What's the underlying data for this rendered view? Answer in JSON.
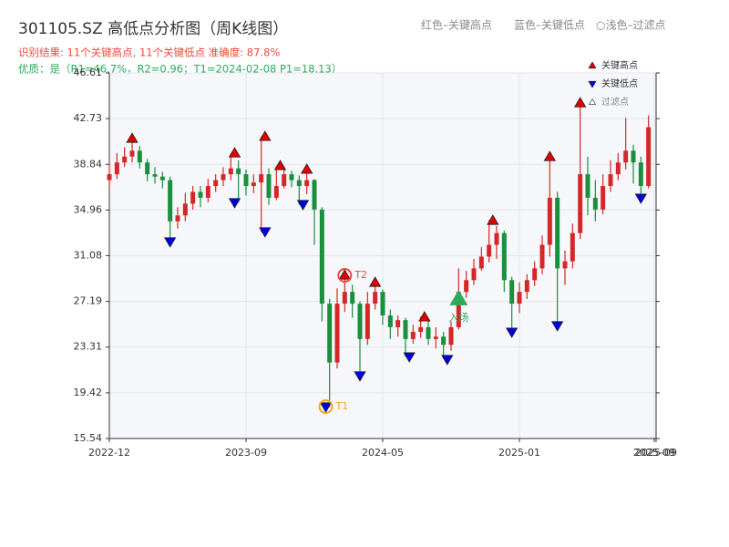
{
  "chart_data": {
    "type": "candlestick",
    "title": "301105.SZ 高低点分析图（周K线图）",
    "subtitle": "识别结果: 11个关键高点, 11个关键低点   准确度: 87.8%",
    "quality_line": "优质：是（R1=46.7%，R2=0.96；T1=2024-02-08 P1=18.13）",
    "header_legend": "红色–关键高点　　蓝色–关键低点　○浅色–过滤点",
    "up_color": "#d62728",
    "down_color": "#1a8f3c",
    "grid": true,
    "xlim": [
      0,
      144
    ],
    "xticks": [
      {
        "value": 0,
        "label": "2022-12"
      },
      {
        "value": 36,
        "label": "2023-09"
      },
      {
        "value": 72,
        "label": "2024-05"
      },
      {
        "value": 108,
        "label": "2025-01"
      },
      {
        "value": 143.5,
        "label": "2025-09"
      },
      {
        "value": 144,
        "label": "2025-09"
      }
    ],
    "ylim": [
      15.54,
      46.61
    ],
    "yticks": [
      15.54,
      19.42,
      23.31,
      27.19,
      31.08,
      34.96,
      38.84,
      42.73,
      46.61
    ],
    "x": [
      0,
      2,
      4,
      6,
      8,
      10,
      12,
      14,
      16,
      18,
      20,
      22,
      24,
      26,
      28,
      30,
      32,
      34,
      36,
      38,
      40,
      42,
      44,
      46,
      48,
      50,
      52,
      54,
      56,
      58,
      60,
      62,
      64,
      66,
      68,
      70,
      72,
      74,
      76,
      78,
      80,
      82,
      84,
      86,
      88,
      90,
      92,
      94,
      96,
      98,
      100,
      102,
      104,
      106,
      108,
      110,
      112,
      114,
      116,
      118,
      120,
      122,
      124,
      126,
      128,
      130,
      132,
      134,
      136,
      138,
      140,
      142
    ],
    "open": [
      37.5,
      38,
      39,
      39.5,
      40,
      39,
      38,
      37.8,
      37.5,
      34,
      34.5,
      35.5,
      36.5,
      36,
      37,
      37.5,
      38,
      38.5,
      38,
      37,
      37.3,
      38,
      36,
      37,
      38,
      37.5,
      37,
      37.5,
      35,
      27,
      22,
      27,
      28,
      27,
      24,
      27,
      28,
      26,
      25,
      25.6,
      24,
      24.6,
      25,
      24,
      24.2,
      23.5,
      25,
      28,
      29,
      30,
      31,
      32,
      33,
      29,
      27,
      28,
      29,
      30,
      32,
      36,
      30,
      30.6,
      33,
      38,
      36,
      35,
      37,
      38,
      39,
      40,
      39,
      37
    ],
    "high": [
      38.9,
      39.8,
      40.3,
      41.0,
      40.4,
      39.3,
      38.6,
      38.2,
      37.8,
      35.2,
      36.4,
      37.0,
      37.0,
      37.6,
      38.0,
      38.6,
      39.8,
      39.2,
      38.4,
      38,
      41.2,
      38.5,
      38.7,
      38.6,
      38.3,
      37.9,
      38.4,
      37.6,
      35.2,
      27.4,
      28.3,
      29.4,
      28.6,
      27.2,
      28,
      28.8,
      28.2,
      26.5,
      26.0,
      25.8,
      25.2,
      25.9,
      25.5,
      25,
      24.6,
      25.5,
      30,
      29.8,
      30.8,
      31.8,
      34.1,
      33.6,
      33.2,
      29.3,
      28.8,
      29.5,
      30.6,
      32.8,
      39.5,
      36.5,
      31.5,
      33.8,
      44.1,
      39.5,
      37.5,
      38,
      39.2,
      39.8,
      42.8,
      40.5,
      39.5,
      43
    ],
    "low": [
      36.8,
      37.6,
      38.6,
      39.0,
      38.5,
      37.4,
      37.2,
      36.8,
      32.3,
      33.4,
      34.0,
      35.0,
      35.2,
      35.6,
      36.5,
      37.0,
      37.5,
      35.6,
      36.2,
      36.4,
      33.1,
      35.4,
      35.8,
      36.8,
      36.9,
      35.4,
      36.3,
      32,
      25.5,
      18.2,
      21.5,
      26.3,
      25.8,
      20.9,
      23.5,
      26.5,
      25.2,
      24.0,
      24.2,
      22.5,
      23.6,
      24.1,
      23.5,
      23.2,
      22.3,
      23,
      24.8,
      27.5,
      28.6,
      29.8,
      30.5,
      30.8,
      28,
      24.6,
      26.2,
      27.4,
      28.5,
      29.5,
      31,
      25.2,
      28.6,
      30,
      32.5,
      34.5,
      34,
      34.6,
      36.5,
      37.5,
      38.4,
      37.2,
      36,
      36.8
    ],
    "close": [
      38,
      39,
      39.5,
      40,
      39,
      38,
      37.8,
      37.5,
      34,
      34.5,
      35.5,
      36.5,
      36,
      37,
      37.5,
      38,
      38.5,
      38,
      37,
      37.3,
      38,
      36,
      37,
      38,
      37.5,
      37,
      37.5,
      35,
      27,
      22,
      27,
      28,
      27,
      24,
      27,
      28,
      26,
      25,
      25.6,
      24,
      24.6,
      25,
      24,
      24.2,
      23.5,
      25,
      28,
      29,
      30,
      31,
      32,
      33,
      29,
      27,
      28,
      29,
      30,
      32,
      36,
      30,
      30.6,
      33,
      38,
      36,
      35,
      37,
      38,
      39,
      40,
      39,
      37,
      42
    ],
    "key_highs": {
      "name": "关键高点",
      "color": "#e00000",
      "x": [
        6,
        33,
        41,
        45,
        52,
        62,
        70,
        83,
        101,
        116,
        124
      ],
      "y": [
        41.03,
        39.79,
        41.19,
        38.71,
        38.4,
        29.41,
        28.79,
        25.85,
        34.06,
        39.48,
        44.05
      ]
    },
    "key_lows": {
      "name": "关键低点",
      "color": "#0000e0",
      "x": [
        16,
        33,
        41,
        51,
        57,
        66,
        79,
        89,
        106,
        118,
        140
      ],
      "y": [
        32.28,
        35.61,
        33.13,
        35.45,
        18.25,
        20.89,
        22.51,
        22.28,
        24.6,
        25.15,
        35.99
      ]
    },
    "filtered_legend": "过滤点",
    "annotations": [
      {
        "text": "T1",
        "x": 57,
        "y": 18.25,
        "color": "#f5a623"
      },
      {
        "text": "T2",
        "x": 62,
        "y": 29.41,
        "color": "#e74c3c"
      },
      {
        "text": "入场",
        "x": 92,
        "y": 27.4,
        "color": "#2eaa5c"
      }
    ]
  }
}
